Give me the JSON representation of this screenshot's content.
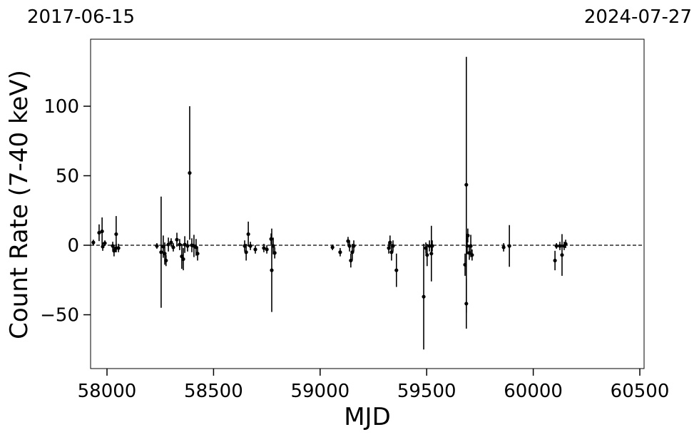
{
  "chart_data": {
    "type": "errorbar",
    "top_left_label": "2017-06-15",
    "top_right_label": "2024-07-27",
    "xlabel": "MJD",
    "ylabel": "Count Rate (7-40 keV)",
    "color": "#000000",
    "xlim": [
      57923,
      60520
    ],
    "ylim": [
      -88.7,
      148.2
    ],
    "xticks": [
      58000,
      58500,
      59000,
      59500,
      60000,
      60500
    ],
    "yticks": [
      {
        "value": -50,
        "label": "−50"
      },
      0,
      50,
      100
    ],
    "reference_line": {
      "y": 0,
      "style": "dashed"
    },
    "x": [
      57936,
      57963,
      57977,
      57980,
      57990,
      58027,
      58033,
      58043,
      58043,
      58054,
      58234,
      58254,
      58264,
      58271,
      58277,
      58288,
      58301,
      58311,
      58328,
      58341,
      58351,
      58358,
      58365,
      58378,
      58388,
      58398,
      58408,
      58418,
      58425,
      58646,
      58653,
      58663,
      58673,
      58696,
      58736,
      58750,
      58770,
      58773,
      58780,
      58787,
      59058,
      59094,
      59131,
      59138,
      59144,
      59151,
      59158,
      59322,
      59328,
      59335,
      59342,
      59358,
      59486,
      59496,
      59502,
      59513,
      59522,
      59526,
      59680,
      59686,
      59686,
      59690,
      59693,
      59700,
      59707,
      59713,
      59861,
      59888,
      60102,
      60109,
      60125,
      60135,
      60145,
      60152
    ],
    "values": [
      2,
      9,
      10,
      -1,
      1.5,
      -0.5,
      -4,
      8,
      -2,
      -2,
      -0.5,
      -5,
      -1,
      -6,
      -11,
      0.5,
      2,
      -1.5,
      4,
      0.5,
      -8,
      -10,
      0.5,
      -0.5,
      52,
      0,
      -0.5,
      -1.5,
      -6,
      -0.5,
      -5,
      8,
      -0.5,
      -3,
      -2,
      -3,
      4.5,
      -18,
      -0.5,
      -5.5,
      -1.5,
      -5,
      3,
      -0.5,
      -11,
      -5,
      -0.5,
      -2,
      2,
      -5,
      -0.5,
      -18,
      -37,
      -2,
      -7,
      -0.5,
      -6,
      -0.5,
      -14,
      -42,
      43.5,
      -0.5,
      7,
      -5.5,
      -0.5,
      -7,
      -1.5,
      -0.5,
      -11,
      -0.5,
      -0.5,
      -7,
      -0.5,
      1
    ],
    "errors": [
      2,
      6,
      10,
      3,
      2,
      3,
      4,
      13,
      3,
      3,
      2,
      40,
      8,
      8,
      4,
      5,
      3,
      3,
      5,
      4,
      9,
      8,
      6,
      4,
      48,
      5,
      8,
      6,
      5,
      4,
      6,
      9,
      3,
      3,
      3,
      3,
      4,
      30,
      6,
      4,
      2,
      3,
      3,
      4,
      5,
      6,
      4,
      4,
      5,
      6,
      4,
      12,
      38,
      4,
      8,
      4,
      20,
      4,
      8,
      18,
      92,
      6,
      5,
      5,
      8,
      4,
      3,
      15,
      7,
      2,
      3,
      15,
      3,
      3
    ]
  }
}
